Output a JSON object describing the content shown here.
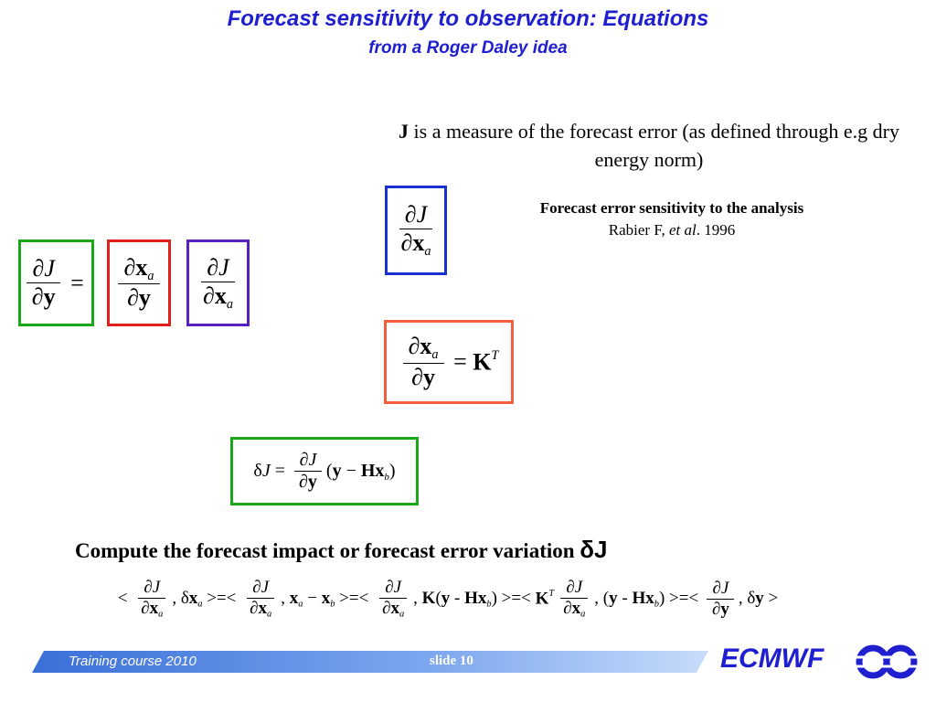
{
  "header": {
    "title": "Forecast sensitivity to observation: Equations",
    "subtitle": "from a Roger Daley idea"
  },
  "note": {
    "bold": "J",
    "text": " is a measure of the forecast error (as defined through e.g dry energy norm)"
  },
  "analysis_sensitivity": {
    "title": "Forecast error sensitivity to the analysis",
    "author": "Rabier F, ",
    "etal": "et al",
    "year": ". 1996"
  },
  "equations": {
    "eq1": [
      {
        "num": [
          "∂",
          "J"
        ],
        "den": [
          "∂",
          "y"
        ]
      },
      " = "
    ],
    "eq2": [
      {
        "num": [
          "∂",
          {
            "base": "x",
            "sub": "a"
          }
        ],
        "den": [
          "∂",
          "y"
        ]
      }
    ],
    "eq3": [
      {
        "num": [
          "∂",
          "J"
        ],
        "den": [
          "∂",
          {
            "base": "x",
            "sub": "a"
          }
        ]
      }
    ],
    "eq4": [
      {
        "num": [
          "∂",
          "J"
        ],
        "den": [
          "∂",
          {
            "base": "x",
            "sub": "a"
          }
        ]
      }
    ],
    "eq5": [
      {
        "num": [
          "∂",
          {
            "base": "x",
            "sub": "a"
          }
        ],
        "den": [
          "∂",
          "y"
        ]
      },
      " = ",
      {
        "base": "K",
        "sup": "T"
      }
    ],
    "eq6": [
      "δ",
      "J",
      " = ",
      {
        "num": [
          "∂",
          "J"
        ],
        "den": [
          "∂",
          "y"
        ]
      },
      "(",
      "y",
      " − ",
      "H",
      {
        "base": "x",
        "sub": "b"
      },
      ")"
    ],
    "eq7": [
      "< ",
      {
        "num": [
          "∂",
          "J"
        ],
        "den": [
          "∂",
          {
            "base": "x",
            "sub": "a"
          }
        ]
      },
      ", δ",
      {
        "base": "x",
        "sub": "a"
      },
      " >=< ",
      {
        "num": [
          "∂",
          "J"
        ],
        "den": [
          "∂",
          {
            "base": "x",
            "sub": "a"
          }
        ]
      },
      ", ",
      {
        "base": "x",
        "sub": "a"
      },
      " − ",
      {
        "base": "x",
        "sub": "b"
      },
      " >=< ",
      {
        "num": [
          "∂",
          "J"
        ],
        "den": [
          "∂",
          {
            "base": "x",
            "sub": "a"
          }
        ]
      },
      ", ",
      "K",
      "(",
      "y",
      " - ",
      "H",
      {
        "base": "x",
        "sub": "b"
      },
      ") >=< ",
      {
        "base": "K",
        "sup": "T"
      },
      {
        "num": [
          "∂",
          "J"
        ],
        "den": [
          "∂",
          {
            "base": "x",
            "sub": "a"
          }
        ]
      },
      ", (",
      "y",
      " - ",
      "H",
      {
        "base": "x",
        "sub": "b"
      },
      ") >=< ",
      {
        "num": [
          "∂",
          "J"
        ],
        "den": [
          "∂",
          "y"
        ]
      },
      ", δ",
      "y",
      " >"
    ]
  },
  "compute": {
    "text": "Compute the forecast impact or forecast error variation ",
    "symbol": "δJ"
  },
  "footer": {
    "course": "Training course  2010",
    "slide": "slide 10",
    "logo": "ECMWF"
  }
}
